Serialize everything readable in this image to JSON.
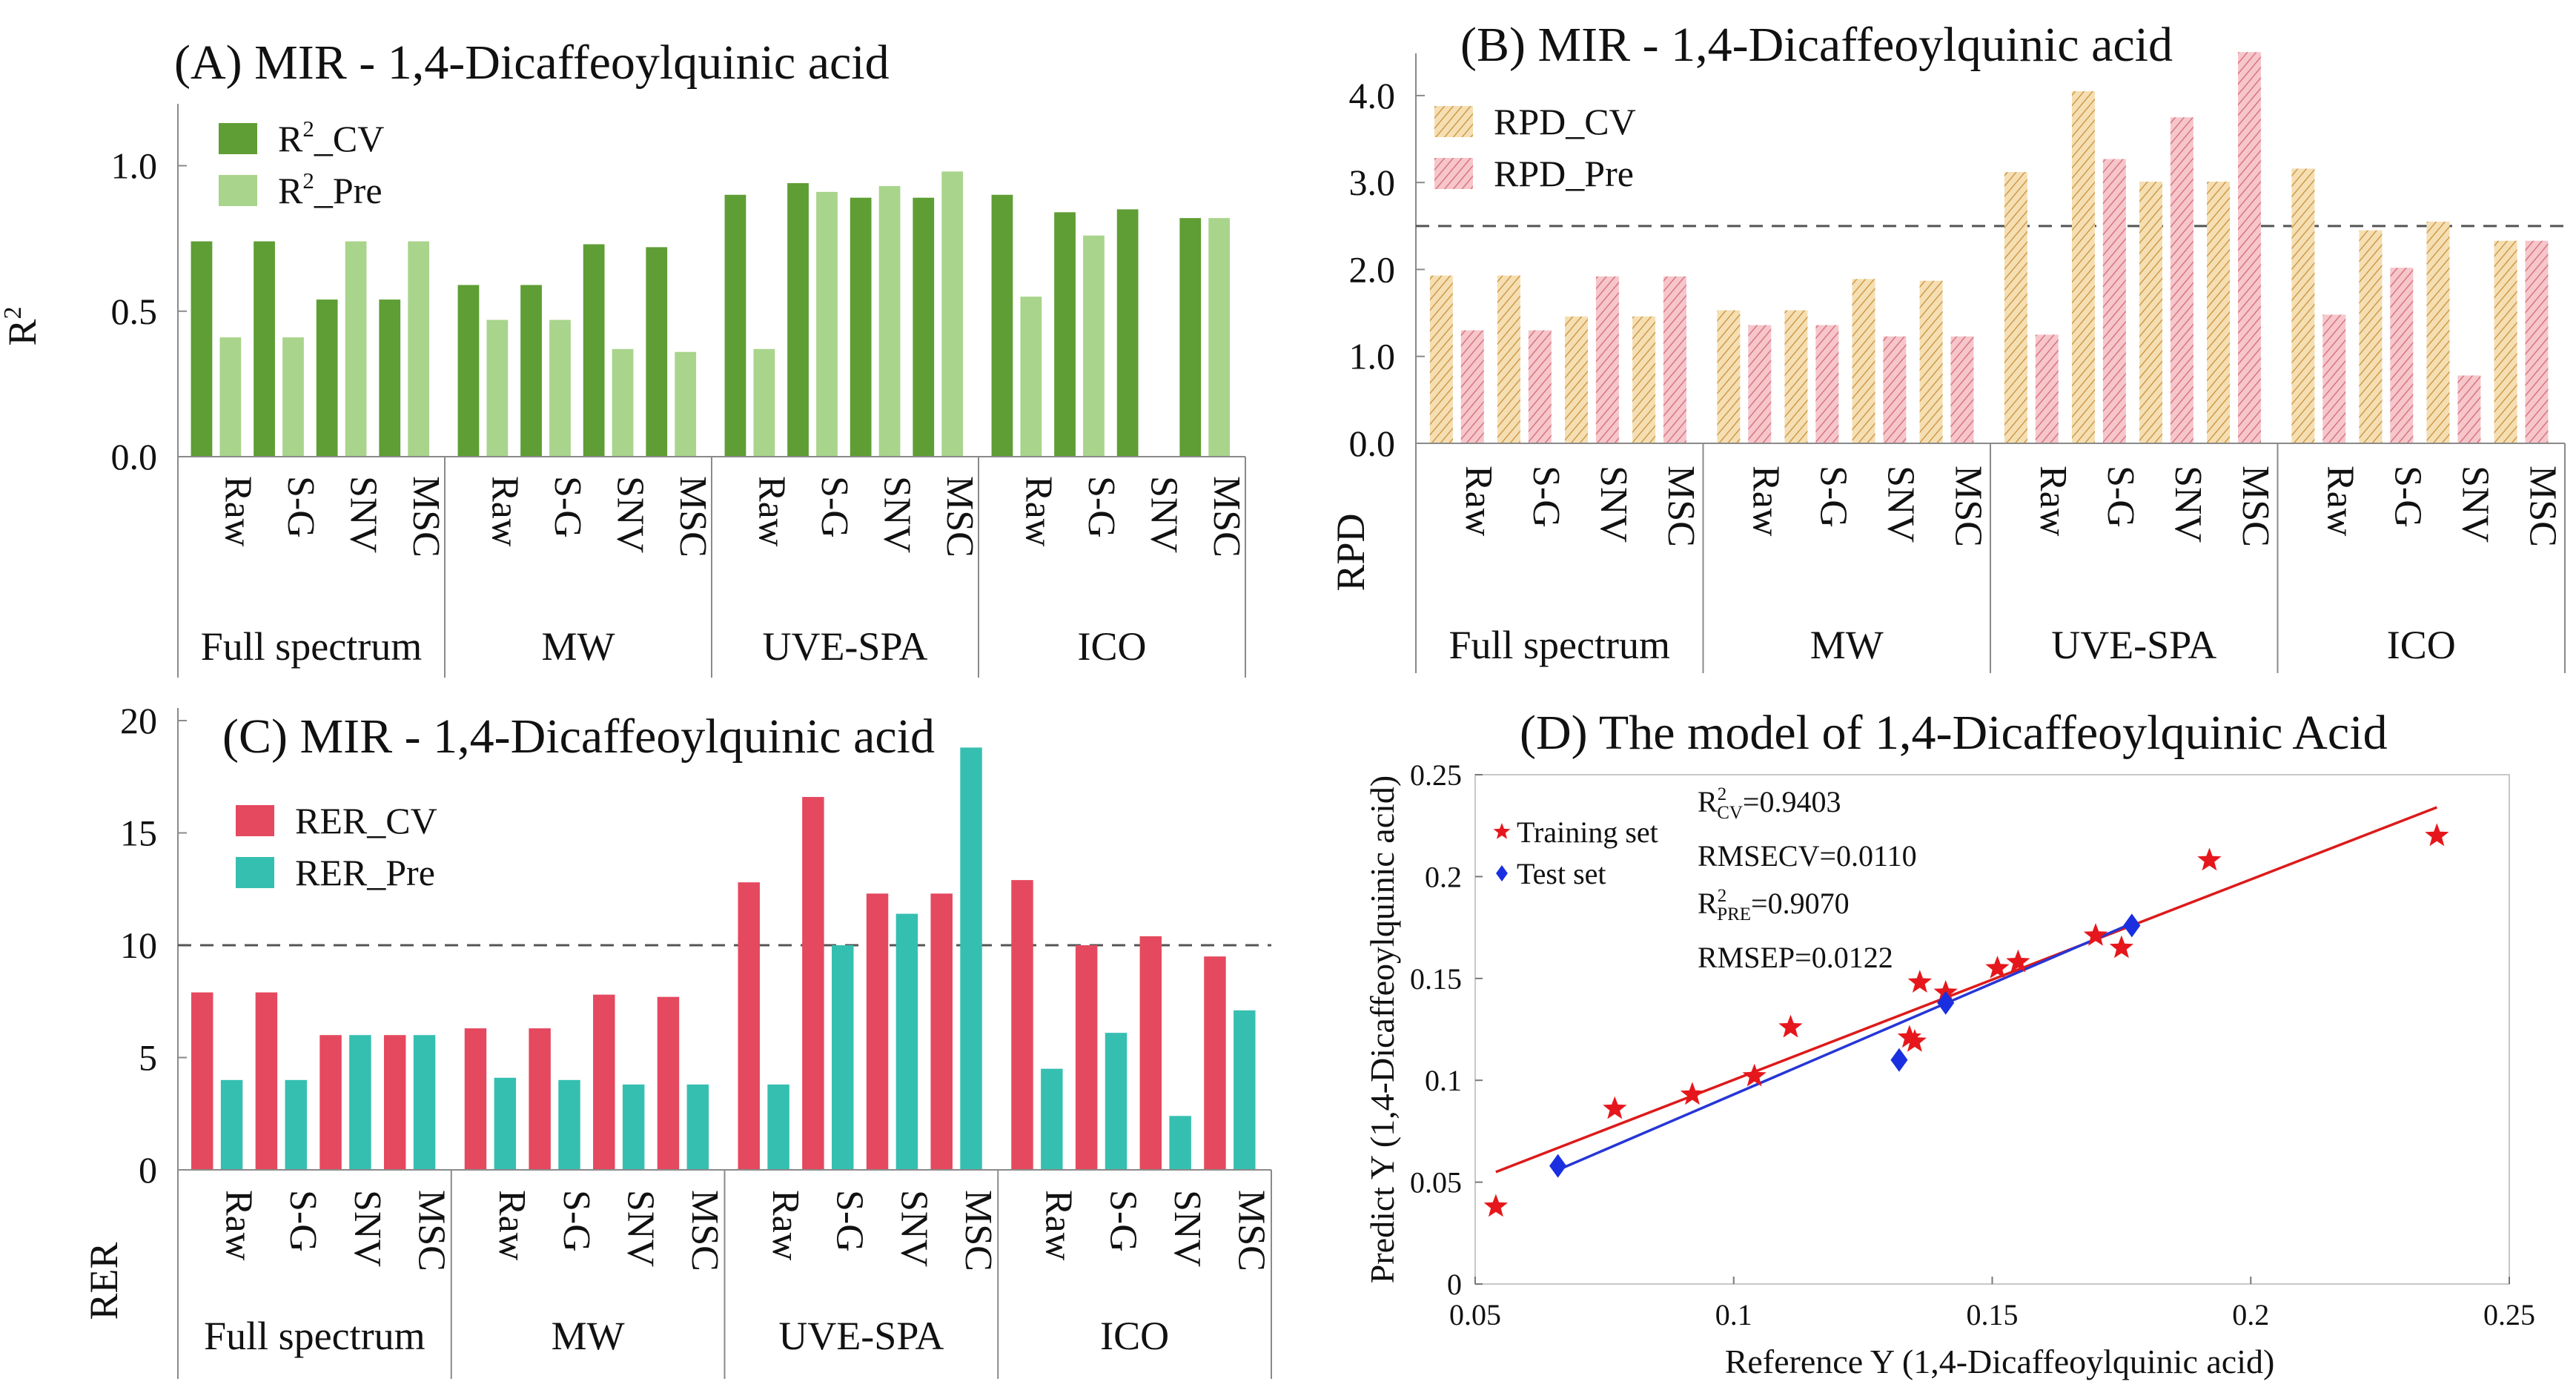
{
  "colors": {
    "r2_cv": "#5e9e34",
    "r2_pre": "#a9d48c",
    "rpd_cv": "#edcf96",
    "rpd_pre": "#eda3ab",
    "rer_cv": "#e5495f",
    "rer_pre": "#35bfb1",
    "training": "#e5171c",
    "test": "#1a2fe0",
    "fit_training": "#dd1a1a",
    "fit_test": "#2636d6"
  },
  "chart_data": [
    {
      "id": "A",
      "type": "bar",
      "title": "(A)  MIR - 1,4-Dicaffeoylquinic acid",
      "ylabel": "R",
      "ylabel_sup": "2",
      "ylim": [
        0,
        1.2
      ],
      "yticks": [
        "0.0",
        "0.5",
        "1.0"
      ],
      "groups": [
        "Full spectrum",
        "MW",
        "UVE-SPA",
        "ICO"
      ],
      "methods": [
        "Raw",
        "S-G",
        "SNV",
        "MSC"
      ],
      "legend": [
        {
          "base": "R",
          "sup": "2",
          "rest": "_CV"
        },
        {
          "base": "R",
          "sup": "2",
          "rest": "_Pre"
        }
      ],
      "series": [
        {
          "name": "R2_CV",
          "values": [
            0.74,
            0.74,
            0.54,
            0.54,
            0.59,
            0.59,
            0.73,
            0.72,
            0.9,
            0.94,
            0.89,
            0.89,
            0.9,
            0.84,
            0.85,
            0.82
          ]
        },
        {
          "name": "R2_Pre",
          "values": [
            0.41,
            0.41,
            0.74,
            0.74,
            0.47,
            0.47,
            0.37,
            0.36,
            0.37,
            0.91,
            0.93,
            0.98,
            0.55,
            0.76,
            0.0,
            0.82
          ]
        }
      ]
    },
    {
      "id": "B",
      "type": "bar",
      "title": "(B)  MIR - 1,4-Dicaffeoylquinic acid",
      "ylabel": "RPD",
      "ylim": [
        0,
        4.4
      ],
      "yticks": [
        "0.0",
        "1.0",
        "2.0",
        "3.0",
        "4.0"
      ],
      "threshold": 2.5,
      "groups": [
        "Full spectrum",
        "MW",
        "UVE-SPA",
        "ICO"
      ],
      "methods": [
        "Raw",
        "S-G",
        "SNV",
        "MSC"
      ],
      "legend": [
        {
          "base": "RPD_CV"
        },
        {
          "base": "RPD_Pre"
        }
      ],
      "series": [
        {
          "name": "RPD_CV",
          "values": [
            1.93,
            1.93,
            1.46,
            1.46,
            1.53,
            1.53,
            1.89,
            1.87,
            3.12,
            4.05,
            3.01,
            3.01,
            3.16,
            2.45,
            2.55,
            2.33
          ]
        },
        {
          "name": "RPD_Pre",
          "values": [
            1.3,
            1.3,
            1.92,
            1.92,
            1.36,
            1.36,
            1.23,
            1.23,
            1.25,
            3.27,
            3.75,
            4.5,
            1.48,
            2.02,
            0.78,
            2.33
          ]
        }
      ]
    },
    {
      "id": "C",
      "type": "bar",
      "title": "(C)  MIR - 1,4-Dicaffeoylquinic acid",
      "ylabel": "RER",
      "ylim": [
        0,
        20
      ],
      "yticks": [
        "0",
        "5",
        "10",
        "15",
        "20"
      ],
      "threshold": 10,
      "groups": [
        "Full spectrum",
        "MW",
        "UVE-SPA",
        "ICO"
      ],
      "methods": [
        "Raw",
        "S-G",
        "SNV",
        "MSC"
      ],
      "legend": [
        {
          "base": "RER_CV"
        },
        {
          "base": "RER_Pre"
        }
      ],
      "series": [
        {
          "name": "RER_CV",
          "values": [
            7.9,
            7.9,
            6.0,
            6.0,
            6.3,
            6.3,
            7.8,
            7.7,
            12.8,
            16.6,
            12.3,
            12.3,
            12.9,
            10.0,
            10.4,
            9.5
          ]
        },
        {
          "name": "RER_Pre",
          "values": [
            4.0,
            4.0,
            6.0,
            6.0,
            4.1,
            4.0,
            3.8,
            3.8,
            3.8,
            10.0,
            11.4,
            18.8,
            4.5,
            6.1,
            2.4,
            7.1
          ]
        }
      ]
    },
    {
      "id": "D",
      "type": "scatter",
      "title": "(D) The model of 1,4-Dicaffeoylquinic Acid",
      "xlabel": "Reference Y (1,4-Dicaffeoylquinic acid)",
      "ylabel": "Predict Y (1,4-Dicaffeoylquinic acid)",
      "xlim": [
        0.05,
        0.25
      ],
      "ylim": [
        0,
        0.25
      ],
      "xticks": [
        "0.05",
        "0.1",
        "0.15",
        "0.2",
        "0.25"
      ],
      "yticks": [
        "0",
        "0.05",
        "0.1",
        "0.15",
        "0.2",
        "0.25"
      ],
      "legend": [
        "Training set",
        "Test set"
      ],
      "stats": [
        {
          "base": "R",
          "sup": "2",
          "sub": "CV",
          "rest": "=0.9403"
        },
        {
          "base": "RMSECV=0.0110"
        },
        {
          "base": "R",
          "sup": "2",
          "sub": "PRE",
          "rest": "=0.9070"
        },
        {
          "base": "RMSEP=0.0122"
        }
      ],
      "series": [
        {
          "name": "Training set",
          "points": [
            [
              0.054,
              0.038
            ],
            [
              0.077,
              0.086
            ],
            [
              0.092,
              0.093
            ],
            [
              0.104,
              0.102
            ],
            [
              0.111,
              0.126
            ],
            [
              0.134,
              0.121
            ],
            [
              0.135,
              0.119
            ],
            [
              0.136,
              0.148
            ],
            [
              0.141,
              0.143
            ],
            [
              0.151,
              0.155
            ],
            [
              0.155,
              0.158
            ],
            [
              0.17,
              0.171
            ],
            [
              0.175,
              0.165
            ],
            [
              0.192,
              0.208
            ],
            [
              0.236,
              0.22
            ]
          ]
        },
        {
          "name": "Test set",
          "points": [
            [
              0.066,
              0.058
            ],
            [
              0.132,
              0.11
            ],
            [
              0.141,
              0.138
            ],
            [
              0.177,
              0.176
            ]
          ]
        }
      ],
      "fit_lines": [
        {
          "name": "Training fit",
          "x": [
            0.054,
            0.236
          ],
          "y": [
            0.055,
            0.234
          ]
        },
        {
          "name": "Test fit",
          "x": [
            0.066,
            0.177
          ],
          "y": [
            0.056,
            0.177
          ]
        }
      ]
    }
  ]
}
